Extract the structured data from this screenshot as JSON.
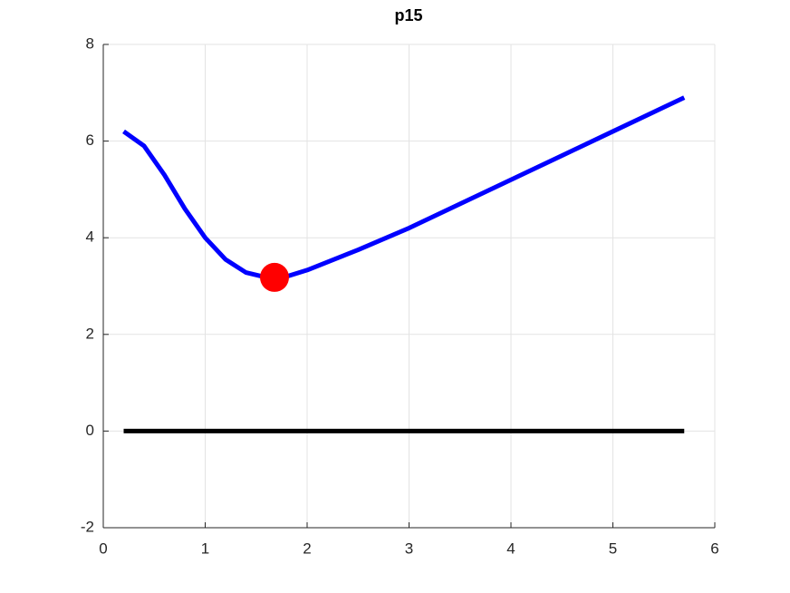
{
  "chart_data": {
    "type": "line",
    "title": "p15",
    "xlim": [
      0,
      6
    ],
    "xticks": [
      0,
      1,
      2,
      3,
      4,
      5,
      6
    ],
    "ylim": [
      -2,
      8
    ],
    "yticks": [
      -2,
      0,
      2,
      4,
      6,
      8
    ],
    "grid": true,
    "series": [
      {
        "color": "#0000ff",
        "style": "line",
        "x": [
          0.2,
          0.4,
          0.6,
          0.8,
          1.0,
          1.2,
          1.4,
          1.6,
          1.8,
          2.0,
          2.5,
          3.0,
          3.5,
          4.0,
          4.5,
          5.0,
          5.5,
          5.7
        ],
        "values": [
          6.2,
          5.9,
          5.3,
          4.6,
          4.0,
          3.55,
          3.28,
          3.18,
          3.2,
          3.33,
          3.75,
          4.2,
          4.7,
          5.2,
          5.7,
          6.2,
          6.7,
          6.9
        ]
      },
      {
        "color": "#000000",
        "style": "line",
        "x": [
          0.2,
          5.7
        ],
        "values": [
          0,
          0
        ]
      },
      {
        "color": "#ff0000",
        "style": "marker",
        "x": [
          1.68
        ],
        "values": [
          3.18
        ]
      }
    ]
  }
}
